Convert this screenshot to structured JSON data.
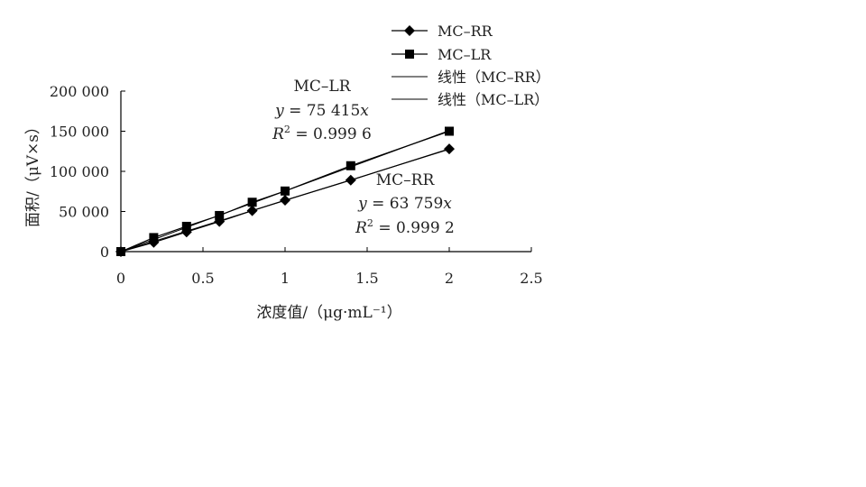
{
  "chart_data": {
    "type": "scatter",
    "xlabel": "浓度值/（μg·mL⁻¹）",
    "ylabel": "面积/（μV×s）",
    "xlim": [
      0,
      2.5
    ],
    "ylim": [
      0,
      200000
    ],
    "x_ticks": [
      "0",
      "0.5",
      "1",
      "1.5",
      "2",
      "2.5"
    ],
    "y_ticks": [
      "0",
      "50 000",
      "100 000",
      "150 000",
      "200 000"
    ],
    "grid": false,
    "legend_position": "top-right",
    "series": [
      {
        "name": "MC–RR",
        "marker": "diamond",
        "color": "#000000",
        "x": [
          0,
          0.2,
          0.4,
          0.6,
          0.8,
          1.0,
          1.4,
          2.0
        ],
        "y": [
          0,
          11500,
          24500,
          37500,
          51000,
          64000,
          89000,
          128000
        ]
      },
      {
        "name": "MC–LR",
        "marker": "square",
        "color": "#000000",
        "x": [
          0,
          0.2,
          0.4,
          0.6,
          0.8,
          1.0,
          1.4,
          2.0
        ],
        "y": [
          0,
          17500,
          31500,
          45000,
          61500,
          75500,
          107000,
          150000
        ]
      }
    ],
    "fits": [
      {
        "name": "线性（MC–RR）",
        "slope": 63759,
        "x_range": [
          0,
          2.0
        ]
      },
      {
        "name": "线性（MC–LR）",
        "slope": 75415,
        "x_range": [
          0,
          2.0
        ]
      }
    ],
    "annotations": [
      {
        "id": "lr",
        "title": "MC–LR",
        "equation_y": "y",
        "equation_rest": " = 75 415",
        "equation_x": "x",
        "r2_r": "R",
        "r2_sup": "2",
        "r2_rest": " = 0.999 6"
      },
      {
        "id": "rr",
        "title": "MC–RR",
        "equation_y": "y",
        "equation_rest": " = 63 759",
        "equation_x": "x",
        "r2_r": "R",
        "r2_sup": "2",
        "r2_rest": " = 0.999 2"
      }
    ]
  }
}
